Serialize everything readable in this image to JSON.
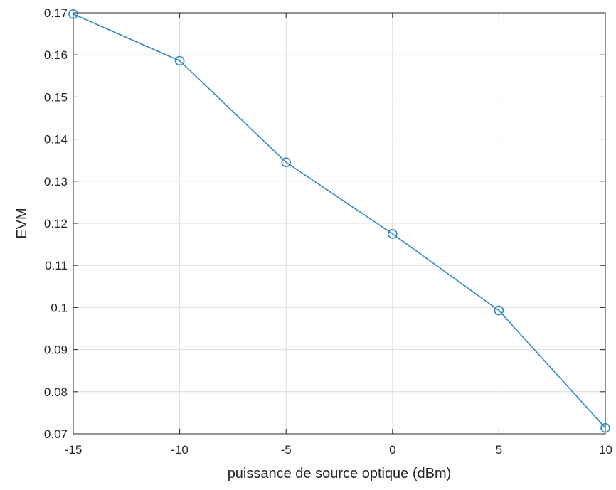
{
  "chart_data": {
    "type": "line",
    "title": "",
    "xlabel": "puissance de source optique (dBm)",
    "ylabel": "EVM",
    "xlim": [
      -15,
      10
    ],
    "ylim": [
      0.07,
      0.17
    ],
    "grid": true,
    "xticks": [
      -15,
      -10,
      -5,
      0,
      5,
      10
    ],
    "xtick_labels": [
      "-15",
      "-10",
      "-5",
      "0",
      "5",
      "10"
    ],
    "yticks": [
      0.07,
      0.08,
      0.09,
      0.1,
      0.11,
      0.12,
      0.13,
      0.14,
      0.15,
      0.16,
      0.17
    ],
    "ytick_labels": [
      "0.07",
      "0.08",
      "0.09",
      "0.1",
      "0.11",
      "0.12",
      "0.13",
      "0.14",
      "0.15",
      "0.16",
      "0.17"
    ],
    "series": [
      {
        "x": [
          -15,
          -10,
          -5,
          0,
          5,
          10
        ],
        "y": [
          0.1697,
          0.1586,
          0.1345,
          0.1175,
          0.0993,
          0.0714
        ],
        "color": "#2f8ac4",
        "marker": "circle"
      }
    ]
  }
}
